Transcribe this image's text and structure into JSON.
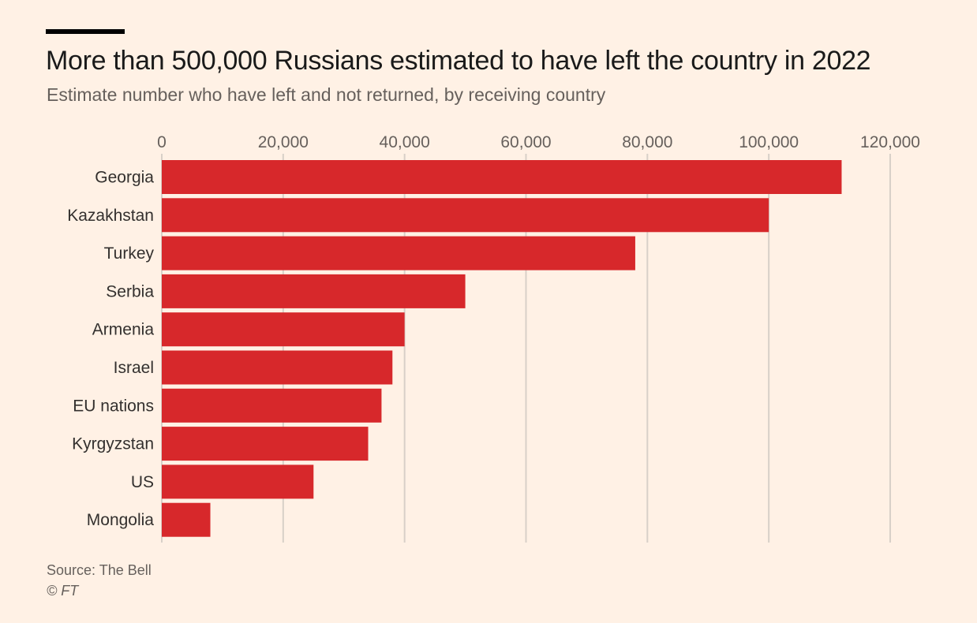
{
  "header": {
    "title": "More than 500,000 Russians estimated to have left the country in 2022",
    "subtitle": "Estimate number who have left and not returned, by receiving country"
  },
  "footer": {
    "source": "Source: The Bell",
    "credit": "© FT"
  },
  "colors": {
    "background": "#fff1e5",
    "bar": "#d7282b",
    "gridline": "#d8d0c8",
    "axis_text": "#66605c",
    "title_text": "#1a1a1a"
  },
  "chart_data": {
    "type": "bar",
    "orientation": "horizontal",
    "title": "More than 500,000 Russians estimated to have left the country in 2022",
    "subtitle": "Estimate number who have left and not returned, by receiving country",
    "xlabel": "",
    "ylabel": "",
    "xlim": [
      0,
      120000
    ],
    "x_ticks": [
      0,
      20000,
      40000,
      60000,
      80000,
      100000,
      120000
    ],
    "x_tick_labels": [
      "0",
      "20,000",
      "40,000",
      "60,000",
      "80,000",
      "100,000",
      "120,000"
    ],
    "x_axis_position": "top",
    "grid": true,
    "legend": "none",
    "categories": [
      "Georgia",
      "Kazakhstan",
      "Turkey",
      "Serbia",
      "Armenia",
      "Israel",
      "EU nations",
      "Kyrgyzstan",
      "US",
      "Mongolia"
    ],
    "values": [
      112000,
      100000,
      78000,
      50000,
      40000,
      38000,
      36200,
      34000,
      25000,
      8000
    ]
  }
}
